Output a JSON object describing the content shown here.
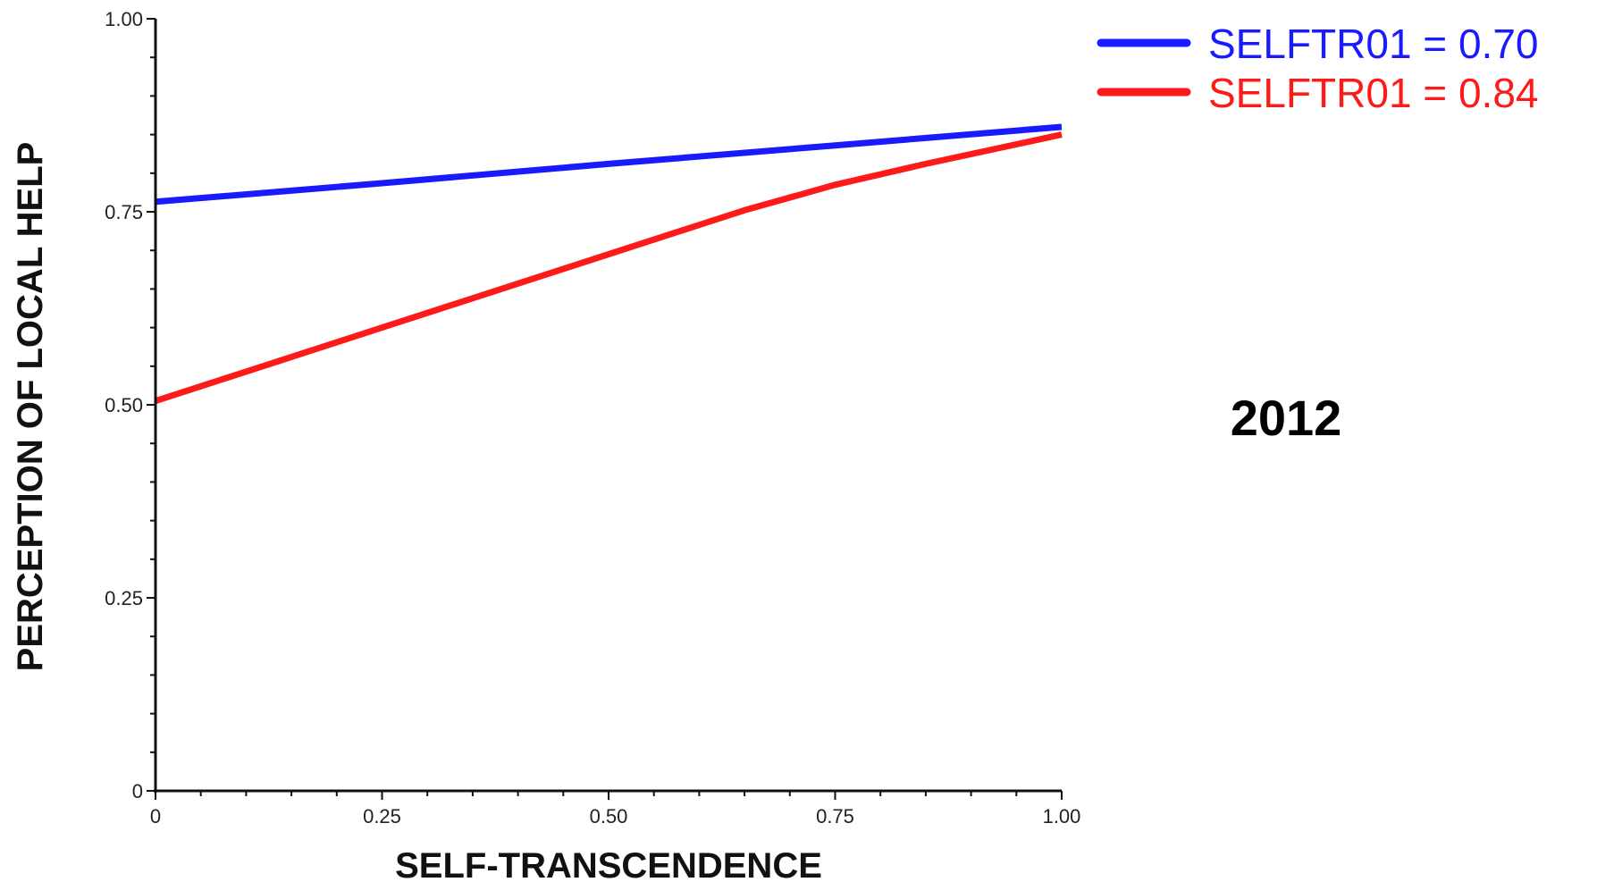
{
  "chart_data": {
    "type": "line",
    "title": "",
    "annotation": "2012",
    "xlabel": "SELF-TRANSCENDENCE",
    "ylabel": "PERCEPTION OF LOCAL HELP",
    "xlim": [
      0,
      1
    ],
    "ylim": [
      0,
      1
    ],
    "x_ticks": [
      0,
      0.25,
      0.5,
      0.75,
      1.0
    ],
    "x_tick_labels": [
      "0",
      "0.25",
      "0.50",
      "0.75",
      "1.00"
    ],
    "y_ticks": [
      0,
      0.25,
      0.5,
      0.75,
      1.0
    ],
    "y_tick_labels": [
      "0",
      "0.25",
      "0.50",
      "0.75",
      "1.00"
    ],
    "grid": false,
    "legend_position": "top-right",
    "series": [
      {
        "name": "SELFTR01 = 0.70",
        "color": "#1a1aff",
        "x": [
          0,
          0.25,
          0.5,
          0.75,
          1.0
        ],
        "y": [
          0.763,
          0.787,
          0.812,
          0.836,
          0.86
        ]
      },
      {
        "name": "SELFTR01 = 0.84",
        "color": "#ff1a1a",
        "x": [
          0,
          0.25,
          0.5,
          0.65,
          0.75,
          0.85,
          1.0
        ],
        "y": [
          0.505,
          0.6,
          0.695,
          0.752,
          0.785,
          0.812,
          0.85
        ]
      }
    ]
  }
}
